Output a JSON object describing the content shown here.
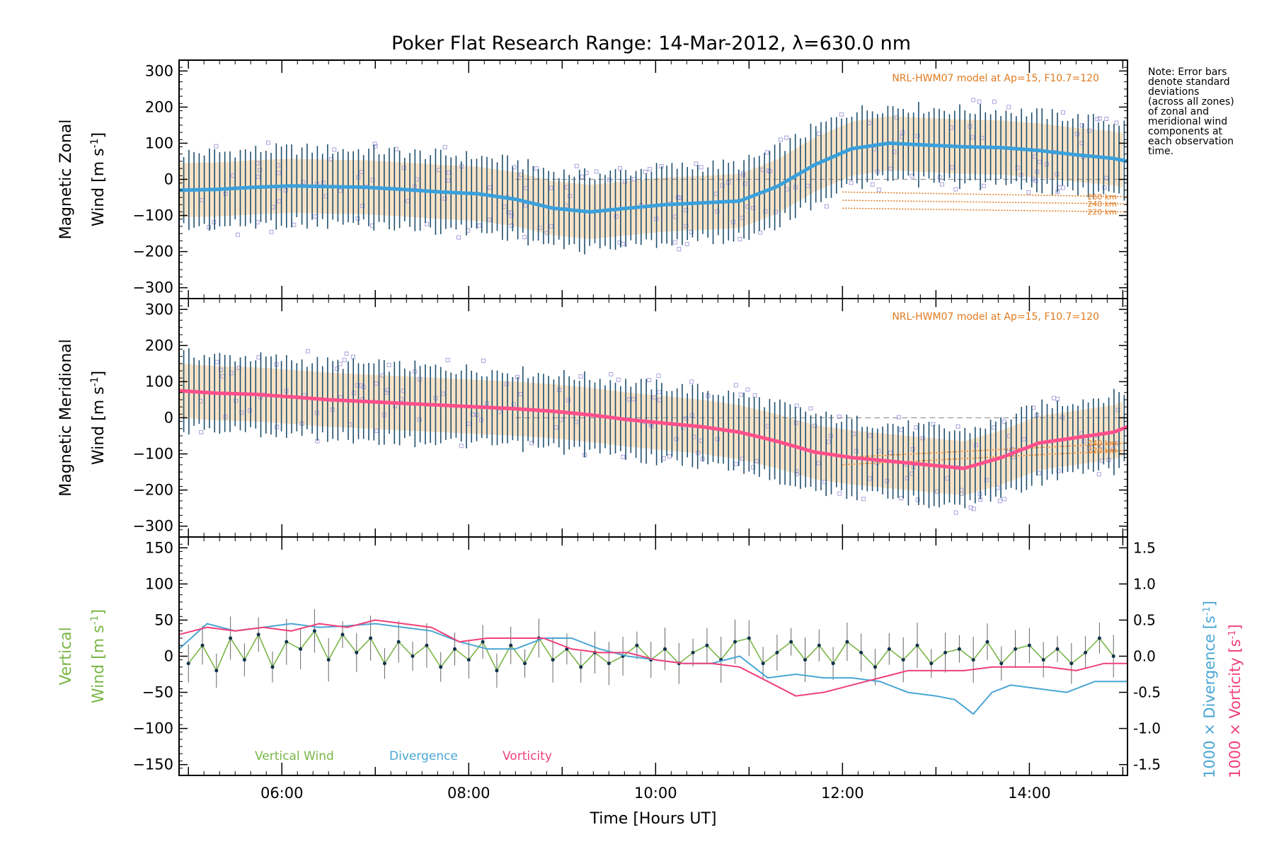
{
  "title": "Poker Flat Research Range: 14-Mar-2012, λ=630.0 nm",
  "note": "Note: Error bars\ndenote standard\ndeviations\n(across all zones)\nof zonal and\nmeridional wind\ncomponents at\neach observation\ntime.",
  "model_label": "NRL-HWM07 model at Ap=15, F10.7=120",
  "colors": {
    "zonal_mean": "#3aa0dc",
    "meridional_mean": "#ff4f8b",
    "vertical": "#7ab648",
    "divergence": "#4aa6d4",
    "vorticity": "#f0407a",
    "errbar": "#1f4f6e",
    "model": "#e07a20",
    "scatter": "#a9a3dc"
  },
  "chart_data": [
    {
      "type": "line",
      "name": "zonal",
      "ylabel_line1": "Magnetic Zonal",
      "ylabel_line2": "Wind [m s",
      "ylabel_sup": "-1",
      "ylabel_end": "]",
      "ylim": [
        -330,
        330
      ],
      "yticks": [
        -300,
        -200,
        -100,
        0,
        100,
        200,
        300
      ],
      "xlim": [
        4.9,
        15.05
      ],
      "mean_wind": {
        "x": [
          4.9,
          5.3,
          5.7,
          6.1,
          6.5,
          6.9,
          7.3,
          7.7,
          8.1,
          8.5,
          8.9,
          9.3,
          9.7,
          10.1,
          10.5,
          10.9,
          11.3,
          11.7,
          12.1,
          12.5,
          12.9,
          13.3,
          13.7,
          14.1,
          14.5,
          14.9,
          15.05
        ],
        "y": [
          -30,
          -28,
          -22,
          -18,
          -20,
          -22,
          -28,
          -35,
          -40,
          -55,
          -80,
          -90,
          -80,
          -70,
          -65,
          -60,
          -20,
          40,
          85,
          100,
          95,
          90,
          88,
          80,
          68,
          58,
          50
        ]
      },
      "model": [
        {
          "label": "260 km",
          "x": [
            12.0,
            15.05
          ],
          "y": [
            -35,
            -48
          ]
        },
        {
          "label": "240 km",
          "x": [
            12.0,
            15.05
          ],
          "y": [
            -58,
            -68
          ]
        },
        {
          "label": "220 km",
          "x": [
            12.0,
            15.05
          ],
          "y": [
            -80,
            -90
          ]
        }
      ]
    },
    {
      "type": "line",
      "name": "meridional",
      "ylabel_line1": "Magnetic Meridional",
      "ylabel_line2": "Wind [m s",
      "ylabel_sup": "-1",
      "ylabel_end": "]",
      "ylim": [
        -330,
        330
      ],
      "yticks": [
        -300,
        -200,
        -100,
        0,
        100,
        200,
        300
      ],
      "xlim": [
        4.9,
        15.05
      ],
      "mean_wind": {
        "x": [
          4.9,
          5.3,
          5.7,
          6.1,
          6.5,
          6.9,
          7.3,
          7.7,
          8.1,
          8.5,
          8.9,
          9.3,
          9.7,
          10.1,
          10.5,
          10.9,
          11.3,
          11.7,
          12.1,
          12.5,
          12.9,
          13.3,
          13.7,
          14.1,
          14.5,
          14.9,
          15.05
        ],
        "y": [
          75,
          68,
          65,
          58,
          50,
          45,
          40,
          35,
          30,
          25,
          18,
          8,
          -5,
          -15,
          -25,
          -40,
          -65,
          -95,
          -110,
          -120,
          -130,
          -140,
          -110,
          -70,
          -55,
          -40,
          -25
        ]
      },
      "model": [
        {
          "label": "240 km",
          "x": [
            12.0,
            15.05
          ],
          "y": [
            -110,
            -70
          ]
        },
        {
          "label": "220 km",
          "x": [
            12.0,
            15.05
          ],
          "y": [
            -130,
            -90
          ]
        }
      ]
    },
    {
      "type": "line",
      "name": "vertical",
      "ylabel_line1": "Vertical",
      "ylabel_line2": "Wind [m s",
      "ylabel_sup": "-1",
      "ylabel_end": "]",
      "right_label_div": "1000 × Divergence [s",
      "right_label_vort": "1000 × Vorticity [s",
      "ylim": [
        -165,
        165
      ],
      "yticks": [
        -150,
        -100,
        -50,
        0,
        50,
        100,
        150
      ],
      "y2lim": [
        -1.65,
        1.65
      ],
      "y2ticks": [
        -1.5,
        -1.0,
        -0.5,
        0.0,
        0.5,
        1.0,
        1.5
      ],
      "xlim": [
        4.9,
        15.05
      ],
      "xticks": [
        6,
        8,
        10,
        12,
        14
      ],
      "xticklabels": [
        "06:00",
        "08:00",
        "10:00",
        "12:00",
        "14:00"
      ],
      "xlabel": "Time [Hours UT]",
      "legend": [
        "Vertical Wind",
        "Divergence",
        "Vorticity"
      ],
      "divergence": {
        "x": [
          4.9,
          5.2,
          5.5,
          5.8,
          6.1,
          6.4,
          6.7,
          7.0,
          7.3,
          7.6,
          7.9,
          8.2,
          8.5,
          8.8,
          9.1,
          9.4,
          9.7,
          10.0,
          10.3,
          10.6,
          10.9,
          11.2,
          11.5,
          11.8,
          12.1,
          12.4,
          12.7,
          13.0,
          13.2,
          13.4,
          13.6,
          13.8,
          14.1,
          14.4,
          14.7,
          15.05
        ],
        "y": [
          0.1,
          0.45,
          0.35,
          0.4,
          0.45,
          0.4,
          0.42,
          0.45,
          0.4,
          0.35,
          0.2,
          0.1,
          0.1,
          0.25,
          0.25,
          0.1,
          0.0,
          -0.05,
          -0.1,
          -0.1,
          0.0,
          -0.3,
          -0.25,
          -0.3,
          -0.3,
          -0.35,
          -0.5,
          -0.55,
          -0.6,
          -0.8,
          -0.5,
          -0.4,
          -0.45,
          -0.5,
          -0.35,
          -0.35
        ]
      },
      "vorticity": {
        "x": [
          4.9,
          5.2,
          5.5,
          5.8,
          6.1,
          6.4,
          6.7,
          7.0,
          7.3,
          7.6,
          7.9,
          8.2,
          8.5,
          8.8,
          9.1,
          9.4,
          9.7,
          10.0,
          10.3,
          10.6,
          10.9,
          11.2,
          11.5,
          11.8,
          12.1,
          12.4,
          12.7,
          13.0,
          13.3,
          13.6,
          13.9,
          14.2,
          14.5,
          14.8,
          15.05
        ],
        "y": [
          0.3,
          0.4,
          0.35,
          0.4,
          0.35,
          0.45,
          0.4,
          0.5,
          0.45,
          0.4,
          0.2,
          0.25,
          0.25,
          0.25,
          0.1,
          0.05,
          0.05,
          -0.05,
          -0.1,
          -0.1,
          -0.15,
          -0.35,
          -0.55,
          -0.5,
          -0.4,
          -0.3,
          -0.2,
          -0.2,
          -0.2,
          -0.15,
          -0.15,
          -0.15,
          -0.2,
          -0.1,
          -0.1
        ]
      },
      "vertical_wind": {
        "x": [
          5.0,
          5.15,
          5.3,
          5.45,
          5.6,
          5.75,
          5.9,
          6.05,
          6.2,
          6.35,
          6.5,
          6.65,
          6.8,
          6.95,
          7.1,
          7.25,
          7.4,
          7.55,
          7.7,
          7.85,
          8.0,
          8.15,
          8.3,
          8.45,
          8.6,
          8.75,
          8.9,
          9.05,
          9.2,
          9.35,
          9.5,
          9.65,
          9.8,
          9.95,
          10.1,
          10.25,
          10.4,
          10.55,
          10.7,
          10.85,
          11.0,
          11.15,
          11.3,
          11.45,
          11.6,
          11.75,
          11.9,
          12.05,
          12.2,
          12.35,
          12.5,
          12.65,
          12.8,
          12.95,
          13.1,
          13.25,
          13.4,
          13.55,
          13.7,
          13.85,
          14.0,
          14.15,
          14.3,
          14.45,
          14.6,
          14.75,
          14.9
        ],
        "y": [
          -10,
          15,
          -20,
          25,
          -5,
          30,
          -15,
          20,
          10,
          35,
          -5,
          30,
          5,
          25,
          -10,
          20,
          0,
          15,
          -15,
          10,
          -5,
          20,
          -20,
          15,
          -10,
          25,
          -5,
          10,
          -15,
          5,
          -10,
          0,
          15,
          -5,
          10,
          -10,
          5,
          15,
          -5,
          20,
          25,
          -10,
          5,
          20,
          -5,
          15,
          -10,
          20,
          5,
          -15,
          10,
          -5,
          15,
          -10,
          5,
          10,
          -5,
          20,
          -10,
          10,
          15,
          -5,
          10,
          -10,
          5,
          25,
          0
        ]
      }
    }
  ]
}
